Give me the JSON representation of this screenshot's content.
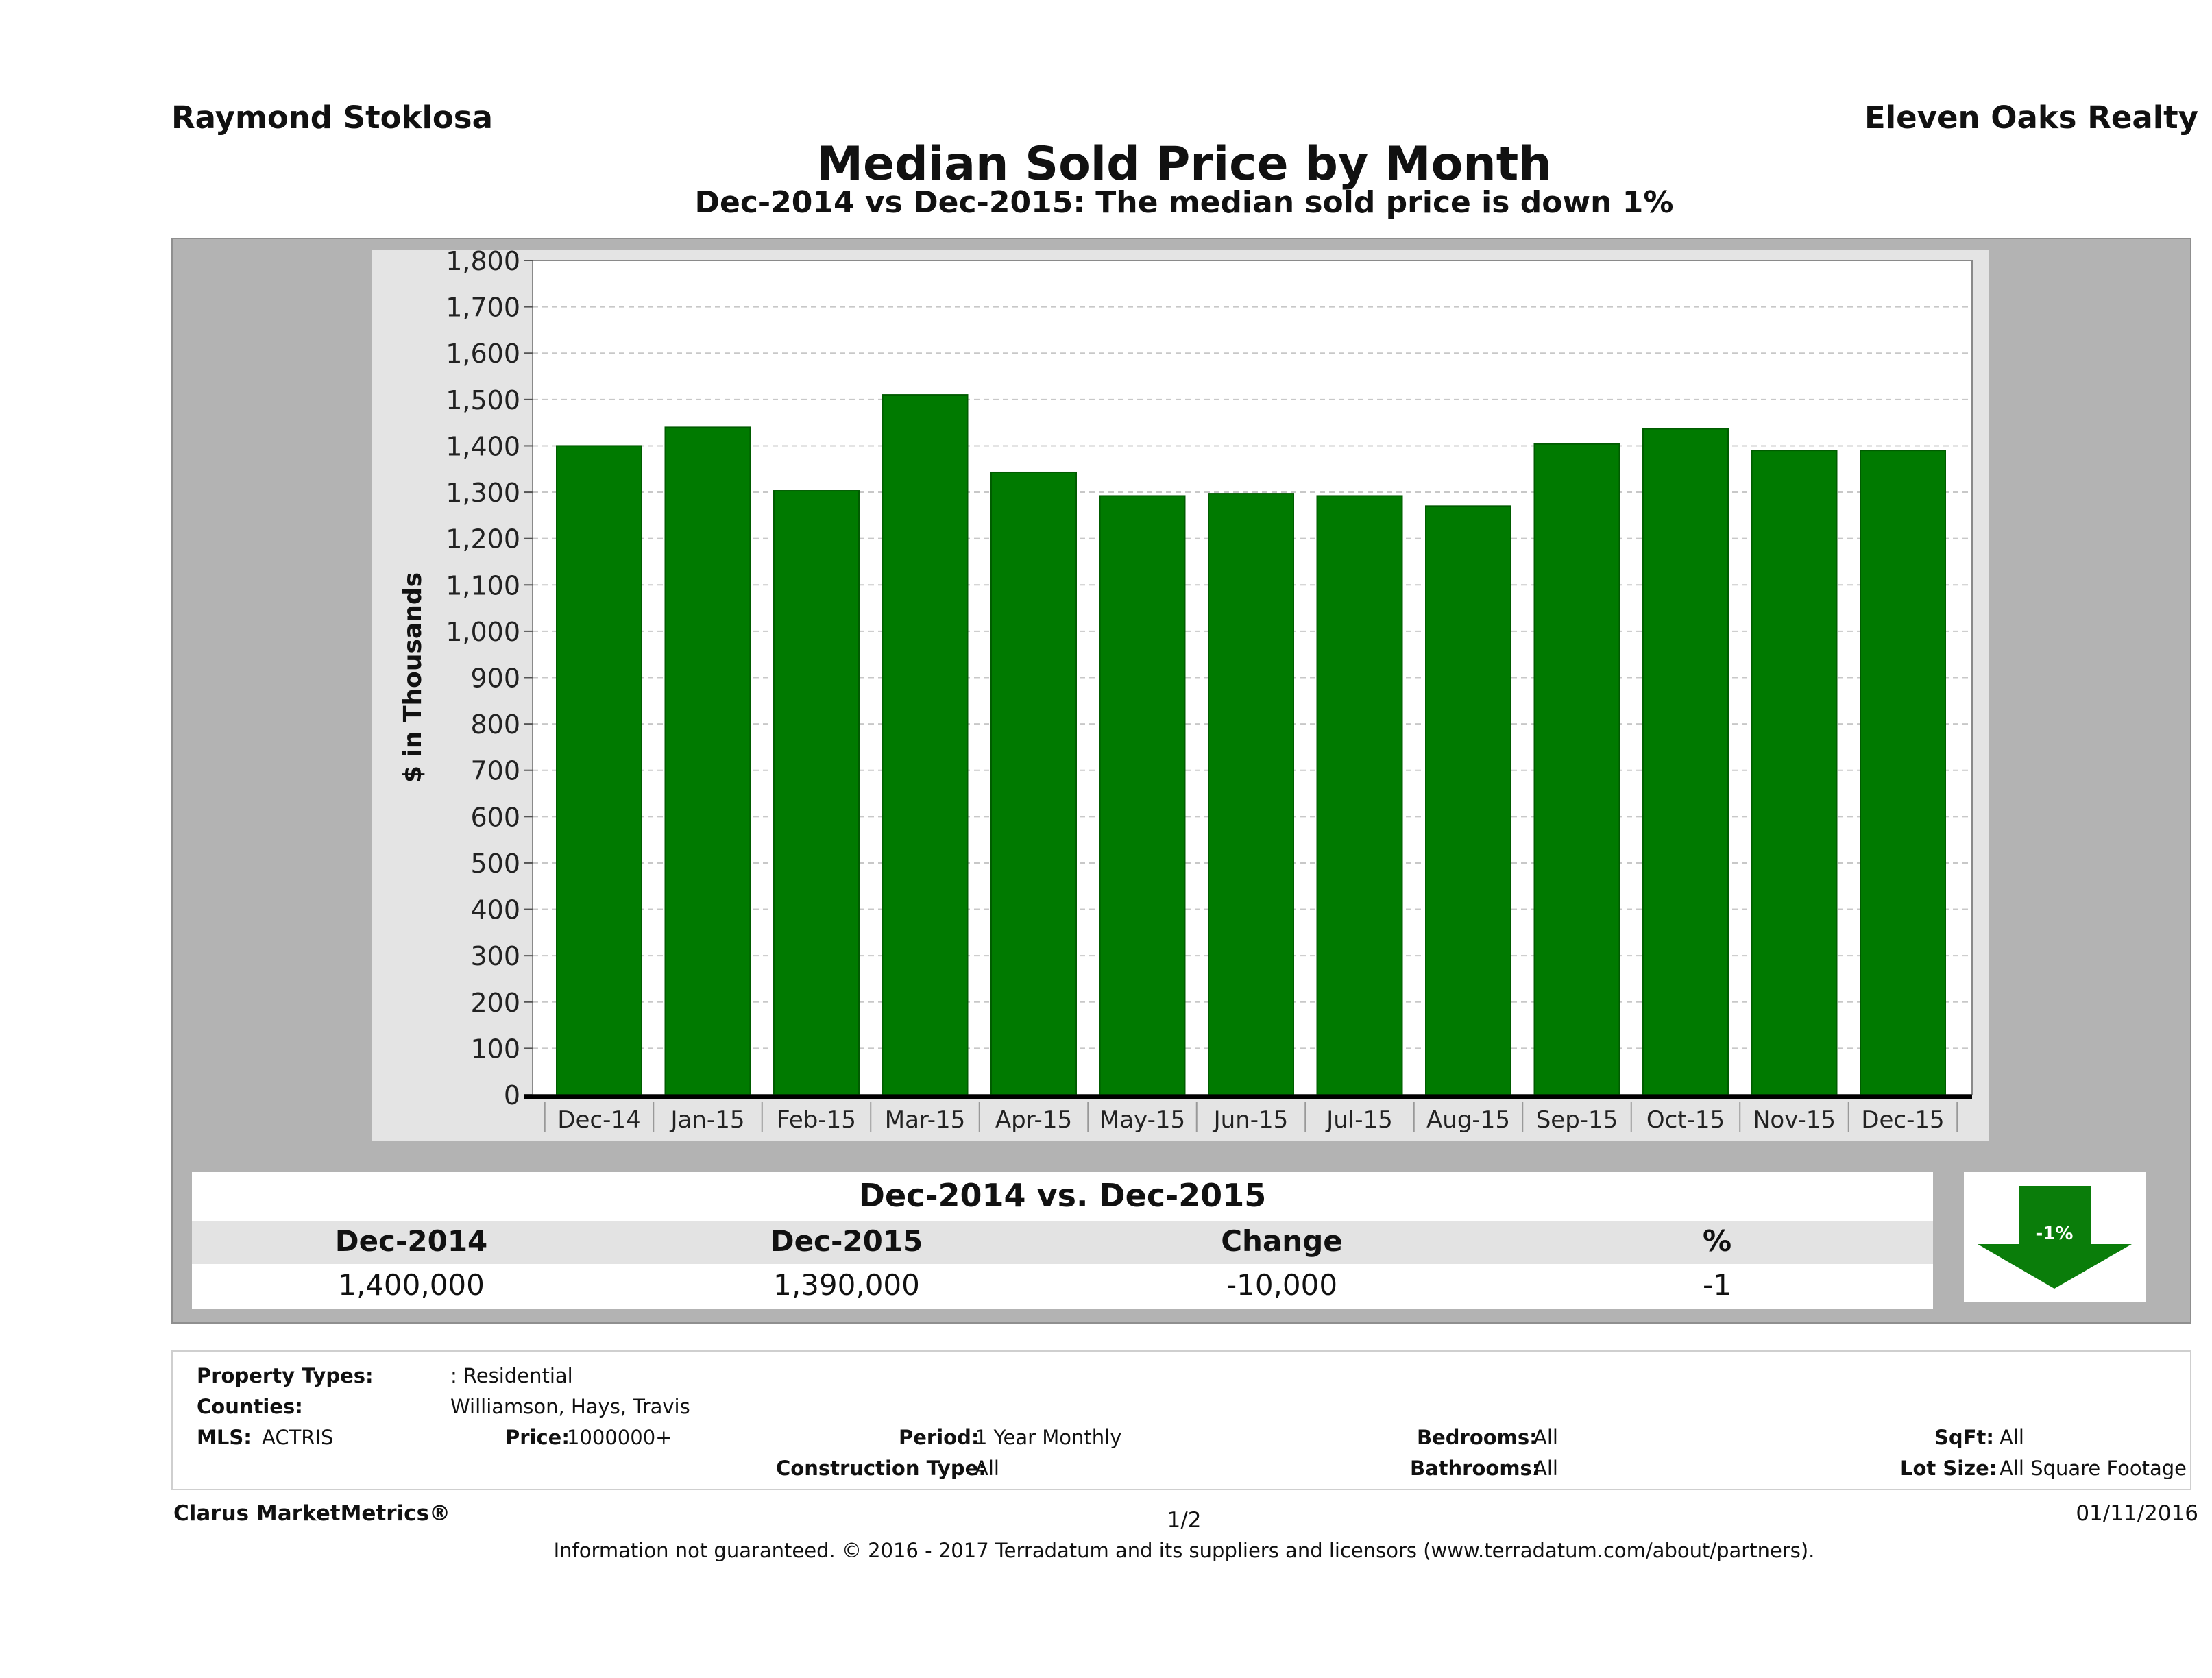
{
  "header": {
    "agent": "Raymond Stoklosa",
    "company": "Eleven Oaks Realty"
  },
  "chart_data": {
    "type": "bar",
    "title": "Median Sold Price by Month",
    "subtitle": "Dec-2014 vs Dec-2015: The median sold price is down 1%",
    "ylabel": "$ in Thousands",
    "xlabel": "",
    "ylim": [
      0,
      1800
    ],
    "yticks": [
      "0",
      "100",
      "200",
      "300",
      "400",
      "500",
      "600",
      "700",
      "800",
      "900",
      "1,000",
      "1,100",
      "1,200",
      "1,300",
      "1,400",
      "1,500",
      "1,600",
      "1,700",
      "1,800"
    ],
    "categories": [
      "Dec-14",
      "Jan-15",
      "Feb-15",
      "Mar-15",
      "Apr-15",
      "May-15",
      "Jun-15",
      "Jul-15",
      "Aug-15",
      "Sep-15",
      "Oct-15",
      "Nov-15",
      "Dec-15"
    ],
    "values": [
      1400,
      1440,
      1303,
      1510,
      1343,
      1292,
      1297,
      1292,
      1270,
      1404,
      1437,
      1390,
      1390
    ],
    "bar_color": "#007a00",
    "grid": true,
    "legend": "none"
  },
  "summary": {
    "heading": "Dec-2014 vs. Dec-2015",
    "columns": [
      "Dec-2014",
      "Dec-2015",
      "Change",
      "%"
    ],
    "values": [
      "1,400,000",
      "1,390,000",
      "-10,000",
      "-1"
    ],
    "arrow_label": "-1%",
    "arrow_direction": "down",
    "arrow_color": "#0a7d0a"
  },
  "info": {
    "property_types_label": "Property Types:",
    "property_types_value": ": Residential",
    "counties_label": "Counties:",
    "counties_value": "Williamson, Hays, Travis",
    "mls_label": "MLS:",
    "mls_value": "ACTRIS",
    "price_label": "Price:",
    "price_value": "1000000+",
    "period_label": "Period:",
    "period_value": "1 Year Monthly",
    "construction_label": "Construction Type:",
    "construction_value": "All",
    "bedrooms_label": "Bedrooms:",
    "bedrooms_value": "All",
    "bathrooms_label": "Bathrooms:",
    "bathrooms_value": "All",
    "sqft_label": "SqFt:",
    "sqft_value": "All",
    "lotsize_label": "Lot Size:",
    "lotsize_value": "All Square Footage"
  },
  "footer": {
    "brand": "Clarus MarketMetrics®",
    "page": "1/2",
    "date": "01/11/2016",
    "disclaimer": "Information not guaranteed. © 2016 - 2017 Terradatum and its suppliers and licensors (www.terradatum.com/about/partners)."
  }
}
